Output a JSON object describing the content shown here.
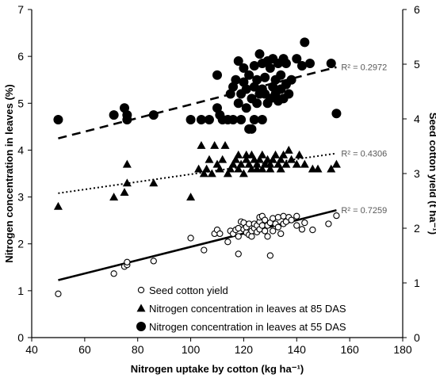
{
  "chart_data": {
    "type": "scatter",
    "xlabel": "Nitrogen uptake by cotton (kg ha⁻¹)",
    "ylabel_left": "Nitrogen concentration in leaves (%)",
    "ylabel_right": "Seed cotton yield (t ha⁻¹)",
    "xlim": [
      40,
      180
    ],
    "ylim_left": [
      0,
      7
    ],
    "ylim_right": [
      0,
      6
    ],
    "x_ticks": [
      40,
      60,
      80,
      100,
      120,
      140,
      160,
      180
    ],
    "y_left_ticks": [
      0,
      1,
      2,
      3,
      4,
      5,
      6,
      7
    ],
    "y_right_ticks": [
      0,
      1,
      2,
      3,
      4,
      5,
      6
    ],
    "grid": false,
    "legend_position": "bottom-center",
    "series": [
      {
        "name": "Seed cotton yield",
        "marker": "open-circle",
        "axis": "right",
        "trend_style": "solid",
        "r2_label": "R² = 0.7259",
        "trend": {
          "x": [
            50,
            155
          ],
          "y": [
            1.05,
            2.33
          ]
        },
        "points": [
          [
            50,
            0.8
          ],
          [
            71,
            1.17
          ],
          [
            75,
            1.3
          ],
          [
            76,
            1.33
          ],
          [
            76,
            1.38
          ],
          [
            86,
            1.4
          ],
          [
            100,
            1.82
          ],
          [
            105,
            1.6
          ],
          [
            109,
            1.9
          ],
          [
            110,
            1.97
          ],
          [
            111,
            1.9
          ],
          [
            114,
            1.75
          ],
          [
            115,
            1.95
          ],
          [
            116,
            1.9
          ],
          [
            117,
            1.97
          ],
          [
            118,
            1.53
          ],
          [
            118,
            1.85
          ],
          [
            118,
            2.0
          ],
          [
            119,
            2.12
          ],
          [
            120,
            2.1
          ],
          [
            120,
            1.98
          ],
          [
            121,
            1.92
          ],
          [
            121,
            2.02
          ],
          [
            122,
            2.08
          ],
          [
            122,
            1.88
          ],
          [
            123,
            1.85
          ],
          [
            123,
            1.95
          ],
          [
            124,
            2.0
          ],
          [
            124,
            2.08
          ],
          [
            125,
            2.05
          ],
          [
            125,
            1.93
          ],
          [
            126,
            2.12
          ],
          [
            126,
            1.98
          ],
          [
            126,
            2.2
          ],
          [
            127,
            2.05
          ],
          [
            127,
            2.22
          ],
          [
            128,
            1.95
          ],
          [
            128,
            2.15
          ],
          [
            129,
            2.05
          ],
          [
            129,
            1.85
          ],
          [
            130,
            1.5
          ],
          [
            130,
            2.1
          ],
          [
            131,
            2.18
          ],
          [
            131,
            1.95
          ],
          [
            132,
            2.08
          ],
          [
            133,
            2.2
          ],
          [
            133,
            2.02
          ],
          [
            134,
            1.9
          ],
          [
            135,
            2.22
          ],
          [
            135,
            2.08
          ],
          [
            136,
            2.12
          ],
          [
            137,
            2.2
          ],
          [
            138,
            2.15
          ],
          [
            140,
            2.22
          ],
          [
            140,
            2.05
          ],
          [
            142,
            1.98
          ],
          [
            143,
            2.1
          ],
          [
            146,
            1.97
          ],
          [
            152,
            2.08
          ],
          [
            155,
            2.23
          ]
        ]
      },
      {
        "name": "Nitrogen concentration in leaves at 85 DAS",
        "marker": "triangle",
        "axis": "left",
        "trend_style": "dotted",
        "r2_label": "R² = 0.4306",
        "trend": {
          "x": [
            50,
            155
          ],
          "y": [
            3.08,
            3.93
          ]
        },
        "points": [
          [
            50,
            2.8
          ],
          [
            71,
            3.0
          ],
          [
            75,
            3.1
          ],
          [
            76,
            3.3
          ],
          [
            76,
            3.7
          ],
          [
            86,
            3.3
          ],
          [
            100,
            3.0
          ],
          [
            103,
            3.6
          ],
          [
            104,
            4.1
          ],
          [
            105,
            3.5
          ],
          [
            106,
            3.6
          ],
          [
            107,
            3.8
          ],
          [
            108,
            3.5
          ],
          [
            109,
            4.1
          ],
          [
            110,
            3.7
          ],
          [
            111,
            3.6
          ],
          [
            112,
            3.8
          ],
          [
            113,
            4.1
          ],
          [
            114,
            3.5
          ],
          [
            115,
            3.6
          ],
          [
            116,
            3.7
          ],
          [
            117,
            3.8
          ],
          [
            118,
            3.6
          ],
          [
            118,
            3.9
          ],
          [
            119,
            3.7
          ],
          [
            120,
            3.5
          ],
          [
            121,
            3.8
          ],
          [
            121,
            3.9
          ],
          [
            122,
            3.7
          ],
          [
            123,
            3.6
          ],
          [
            123,
            3.9
          ],
          [
            124,
            3.8
          ],
          [
            125,
            3.7
          ],
          [
            125,
            3.6
          ],
          [
            126,
            3.8
          ],
          [
            127,
            3.9
          ],
          [
            127,
            3.6
          ],
          [
            128,
            3.7
          ],
          [
            129,
            3.8
          ],
          [
            130,
            3.7
          ],
          [
            130,
            3.6
          ],
          [
            131,
            3.8
          ],
          [
            132,
            3.9
          ],
          [
            133,
            3.7
          ],
          [
            134,
            3.8
          ],
          [
            134,
            3.6
          ],
          [
            135,
            3.9
          ],
          [
            136,
            3.7
          ],
          [
            137,
            4.0
          ],
          [
            138,
            3.8
          ],
          [
            140,
            3.7
          ],
          [
            141,
            3.9
          ],
          [
            143,
            3.7
          ],
          [
            146,
            3.6
          ],
          [
            148,
            3.6
          ],
          [
            153,
            3.6
          ],
          [
            155,
            3.7
          ]
        ]
      },
      {
        "name": "Nitrogen concentration in leaves at 55 DAS",
        "marker": "filled-circle",
        "axis": "left",
        "trend_style": "dashed",
        "r2_label": "R² = 0.2972",
        "trend": {
          "x": [
            50,
            155
          ],
          "y": [
            4.25,
            5.77
          ]
        },
        "points": [
          [
            50,
            4.65
          ],
          [
            71,
            4.75
          ],
          [
            75,
            4.9
          ],
          [
            76,
            4.65
          ],
          [
            76,
            4.75
          ],
          [
            86,
            4.75
          ],
          [
            100,
            4.65
          ],
          [
            104,
            4.65
          ],
          [
            107,
            4.65
          ],
          [
            110,
            4.9
          ],
          [
            110,
            5.6
          ],
          [
            111,
            4.75
          ],
          [
            112,
            4.65
          ],
          [
            114,
            4.65
          ],
          [
            115,
            5.2
          ],
          [
            116,
            5.35
          ],
          [
            116,
            4.65
          ],
          [
            117,
            5.5
          ],
          [
            118,
            5.0
          ],
          [
            118,
            5.9
          ],
          [
            119,
            4.65
          ],
          [
            119,
            5.2
          ],
          [
            120,
            5.75
          ],
          [
            120,
            5.45
          ],
          [
            121,
            4.9
          ],
          [
            121,
            5.3
          ],
          [
            122,
            4.45
          ],
          [
            122,
            5.6
          ],
          [
            123,
            5.1
          ],
          [
            123,
            4.45
          ],
          [
            124,
            5.8
          ],
          [
            124,
            5.35
          ],
          [
            124,
            4.65
          ],
          [
            125,
            5.0
          ],
          [
            125,
            5.5
          ],
          [
            126,
            6.05
          ],
          [
            126,
            5.2
          ],
          [
            127,
            5.85
          ],
          [
            127,
            5.3
          ],
          [
            127,
            4.65
          ],
          [
            128,
            5.55
          ],
          [
            128,
            5.2
          ],
          [
            129,
            5.9
          ],
          [
            129,
            5.0
          ],
          [
            130,
            5.1
          ],
          [
            130,
            5.75
          ],
          [
            131,
            5.35
          ],
          [
            131,
            5.95
          ],
          [
            132,
            5.2
          ],
          [
            132,
            5.5
          ],
          [
            133,
            5.85
          ],
          [
            133,
            5.05
          ],
          [
            134,
            5.3
          ],
          [
            134,
            5.6
          ],
          [
            135,
            5.1
          ],
          [
            135,
            5.95
          ],
          [
            136,
            5.4
          ],
          [
            136,
            5.85
          ],
          [
            137,
            5.2
          ],
          [
            138,
            5.5
          ],
          [
            140,
            5.95
          ],
          [
            142,
            5.8
          ],
          [
            143,
            6.3
          ],
          [
            145,
            5.85
          ],
          [
            153,
            5.85
          ],
          [
            155,
            4.78
          ]
        ]
      }
    ]
  }
}
